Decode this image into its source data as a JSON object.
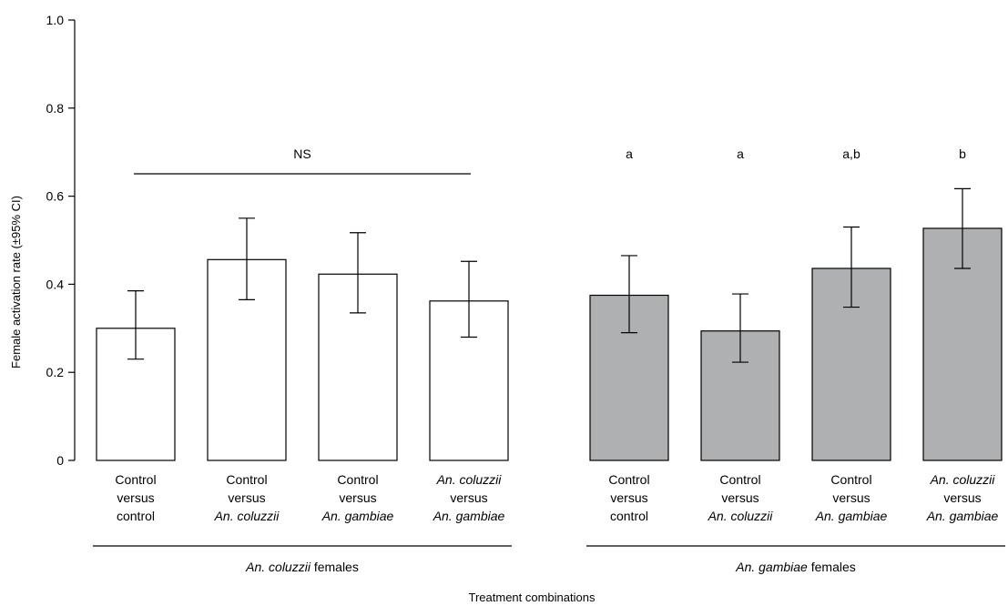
{
  "chart_data": {
    "type": "bar",
    "ylabel": "Female activation rate (±95% CI)",
    "xlabel": "Treatment combinations",
    "ylim": [
      0,
      1.0
    ],
    "yticks": [
      {
        "value": 0,
        "label": "0"
      },
      {
        "value": 0.2,
        "label": "0.2"
      },
      {
        "value": 0.4,
        "label": "0.4"
      },
      {
        "value": 0.6,
        "label": "0.6"
      },
      {
        "value": 0.8,
        "label": "0.8"
      },
      {
        "value": 1.0,
        "label": "1.0"
      }
    ],
    "fill_colors": {
      "An. coluzzii females": "#ffffff",
      "An. gambiae females": "#aeb0b1"
    },
    "groups": [
      {
        "label_species": "An. coluzzii",
        "label_suffix": " females",
        "fill": "#ffffff",
        "significance_overall": "NS",
        "bars": [
          {
            "label_lines": [
              {
                "text": "Control",
                "italic": false
              },
              {
                "text": "versus",
                "italic": false
              },
              {
                "text": "control",
                "italic": false
              }
            ],
            "value": 0.3,
            "ci_low": 0.23,
            "ci_high": 0.385,
            "letter": ""
          },
          {
            "label_lines": [
              {
                "text": "Control",
                "italic": false
              },
              {
                "text": "versus",
                "italic": false
              },
              {
                "text": "An. coluzzii",
                "italic": true
              }
            ],
            "value": 0.456,
            "ci_low": 0.365,
            "ci_high": 0.55,
            "letter": ""
          },
          {
            "label_lines": [
              {
                "text": "Control",
                "italic": false
              },
              {
                "text": "versus",
                "italic": false
              },
              {
                "text": "An. gambiae",
                "italic": true
              }
            ],
            "value": 0.423,
            "ci_low": 0.335,
            "ci_high": 0.517,
            "letter": ""
          },
          {
            "label_lines": [
              {
                "text": "An. coluzzii",
                "italic": true
              },
              {
                "text": "versus",
                "italic": false
              },
              {
                "text": "An. gambiae",
                "italic": true
              }
            ],
            "value": 0.362,
            "ci_low": 0.28,
            "ci_high": 0.452,
            "letter": ""
          }
        ]
      },
      {
        "label_species": "An. gambiae",
        "label_suffix": " females",
        "fill": "#aeb0b1",
        "significance_overall": "",
        "bars": [
          {
            "label_lines": [
              {
                "text": "Control",
                "italic": false
              },
              {
                "text": "versus",
                "italic": false
              },
              {
                "text": "control",
                "italic": false
              }
            ],
            "value": 0.375,
            "ci_low": 0.29,
            "ci_high": 0.465,
            "letter": "a"
          },
          {
            "label_lines": [
              {
                "text": "Control",
                "italic": false
              },
              {
                "text": "versus",
                "italic": false
              },
              {
                "text": "An. coluzzii",
                "italic": true
              }
            ],
            "value": 0.294,
            "ci_low": 0.223,
            "ci_high": 0.378,
            "letter": "a"
          },
          {
            "label_lines": [
              {
                "text": "Control",
                "italic": false
              },
              {
                "text": "versus",
                "italic": false
              },
              {
                "text": "An. gambiae",
                "italic": true
              }
            ],
            "value": 0.436,
            "ci_low": 0.348,
            "ci_high": 0.53,
            "letter": "a,b"
          },
          {
            "label_lines": [
              {
                "text": "An. coluzzii",
                "italic": true
              },
              {
                "text": "versus",
                "italic": false
              },
              {
                "text": "An. gambiae",
                "italic": true
              }
            ],
            "value": 0.527,
            "ci_low": 0.436,
            "ci_high": 0.617,
            "letter": "b"
          }
        ]
      }
    ]
  }
}
